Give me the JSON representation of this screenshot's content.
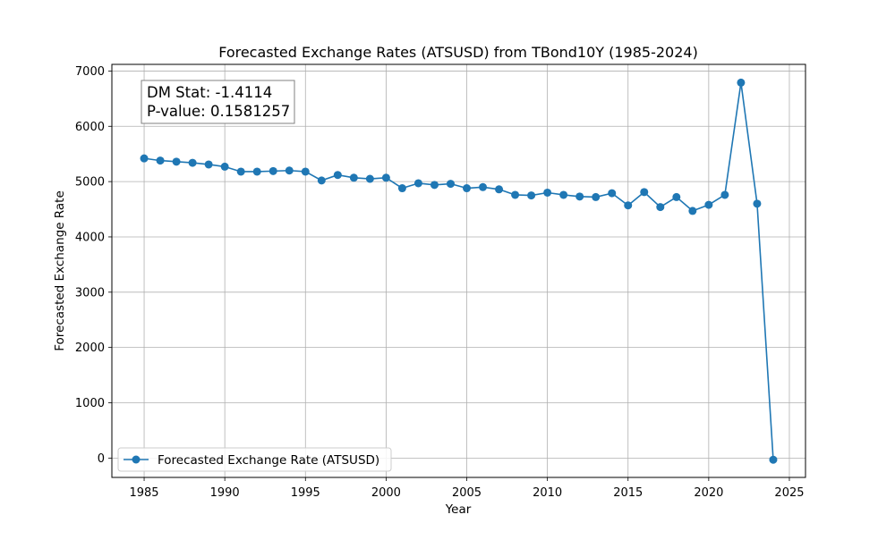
{
  "chart_data": {
    "type": "line",
    "title": "Forecasted Exchange Rates (ATSUSD) from TBond10Y (1985-2024)",
    "xlabel": "Year",
    "ylabel": "Forecasted Exchange Rate",
    "xlim": [
      1983,
      2026
    ],
    "ylim": [
      -350,
      7120
    ],
    "xticks": [
      1985,
      1990,
      1995,
      2000,
      2005,
      2010,
      2015,
      2020,
      2025
    ],
    "yticks": [
      0,
      1000,
      2000,
      3000,
      4000,
      5000,
      6000,
      7000
    ],
    "grid": true,
    "legend_position": "lower-left",
    "annotation": {
      "line1": "DM Stat: -1.4114",
      "line2": "P-value: 0.1581257"
    },
    "series": [
      {
        "name": "Forecasted Exchange Rate (ATSUSD)",
        "color": "#1f77b4",
        "marker": "circle",
        "x": [
          1985,
          1986,
          1987,
          1988,
          1989,
          1990,
          1991,
          1992,
          1993,
          1994,
          1995,
          1996,
          1997,
          1998,
          1999,
          2000,
          2001,
          2002,
          2003,
          2004,
          2005,
          2006,
          2007,
          2008,
          2009,
          2010,
          2011,
          2012,
          2013,
          2014,
          2015,
          2016,
          2017,
          2018,
          2019,
          2020,
          2021,
          2022,
          2023,
          2024
        ],
        "y": [
          5420,
          5380,
          5360,
          5340,
          5310,
          5270,
          5180,
          5180,
          5190,
          5200,
          5180,
          5020,
          5120,
          5070,
          5050,
          5070,
          4880,
          4970,
          4940,
          4960,
          4880,
          4900,
          4860,
          4760,
          4750,
          4800,
          4760,
          4730,
          4720,
          4790,
          4570,
          4810,
          4540,
          4720,
          4470,
          4580,
          4760,
          6790,
          4600,
          -30
        ]
      }
    ]
  }
}
